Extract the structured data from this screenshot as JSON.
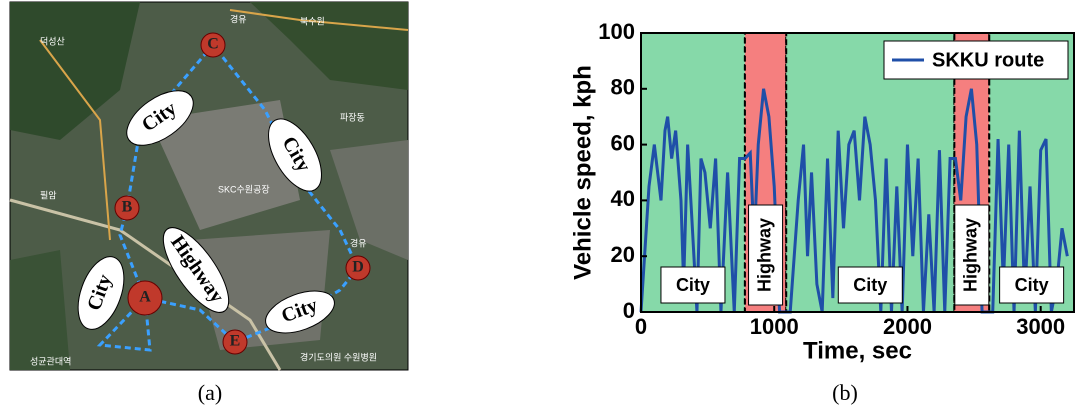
{
  "map": {
    "route_labels": [
      "City",
      "City",
      "City",
      "City",
      "Highway"
    ],
    "points": [
      "A",
      "B",
      "C",
      "D",
      "E"
    ],
    "place_names": [
      "경유",
      "북수원",
      "덕성산",
      "필암",
      "SKC수원공장",
      "파장동",
      "성균관대역",
      "경기도의원 수원병원",
      "경유"
    ],
    "caption": "(a)"
  },
  "chart_data": {
    "type": "line",
    "caption": "(b)",
    "xlabel": "Time, sec",
    "ylabel": "Vehicle speed, kph",
    "xlim": [
      0,
      3250
    ],
    "ylim": [
      0,
      100
    ],
    "xticks": [
      0,
      1000,
      2000,
      3000
    ],
    "yticks": [
      0,
      20,
      40,
      60,
      80,
      100
    ],
    "legend": "upper right",
    "regions": [
      {
        "label": "City",
        "start": 0,
        "end": 780,
        "color": "#86d9a9"
      },
      {
        "label": "Highway",
        "start": 780,
        "end": 1090,
        "color": "#f57f7f"
      },
      {
        "label": "City",
        "start": 1090,
        "end": 2352,
        "color": "#86d9a9"
      },
      {
        "label": "Highway",
        "start": 2352,
        "end": 2614,
        "color": "#f57f7f"
      },
      {
        "label": "City",
        "start": 2614,
        "end": 3250,
        "color": "#86d9a9"
      }
    ],
    "x": [
      0,
      60,
      100,
      150,
      180,
      200,
      230,
      260,
      300,
      320,
      350,
      380,
      420,
      450,
      480,
      520,
      560,
      600,
      650,
      700,
      740,
      780,
      820,
      850,
      880,
      920,
      960,
      1000,
      1040,
      1080,
      1120,
      1180,
      1220,
      1250,
      1280,
      1320,
      1360,
      1400,
      1440,
      1480,
      1520,
      1560,
      1600,
      1640,
      1680,
      1720,
      1760,
      1800,
      1840,
      1880,
      1920,
      1960,
      2000,
      2040,
      2080,
      2120,
      2160,
      2200,
      2240,
      2280,
      2320,
      2360,
      2400,
      2440,
      2480,
      2520,
      2560,
      2600,
      2640,
      2680,
      2720,
      2760,
      2800,
      2840,
      2880,
      2920,
      2960,
      3000,
      3040,
      3080,
      3120,
      3160,
      3200
    ],
    "series": [
      {
        "name": "SKKU route",
        "color": "#1f4fa8",
        "values": [
          0,
          45,
          60,
          40,
          65,
          70,
          55,
          65,
          40,
          10,
          60,
          35,
          0,
          55,
          50,
          30,
          55,
          0,
          50,
          0,
          55,
          55,
          57,
          25,
          60,
          80,
          70,
          45,
          0,
          0,
          0,
          40,
          60,
          20,
          50,
          10,
          0,
          55,
          5,
          65,
          30,
          60,
          65,
          40,
          70,
          60,
          40,
          0,
          55,
          0,
          45,
          0,
          60,
          20,
          55,
          0,
          35,
          0,
          58,
          0,
          55,
          55,
          40,
          70,
          80,
          60,
          0,
          0,
          0,
          62,
          10,
          60,
          0,
          65,
          5,
          45,
          0,
          58,
          62,
          0,
          10,
          30,
          20
        ]
      }
    ]
  }
}
